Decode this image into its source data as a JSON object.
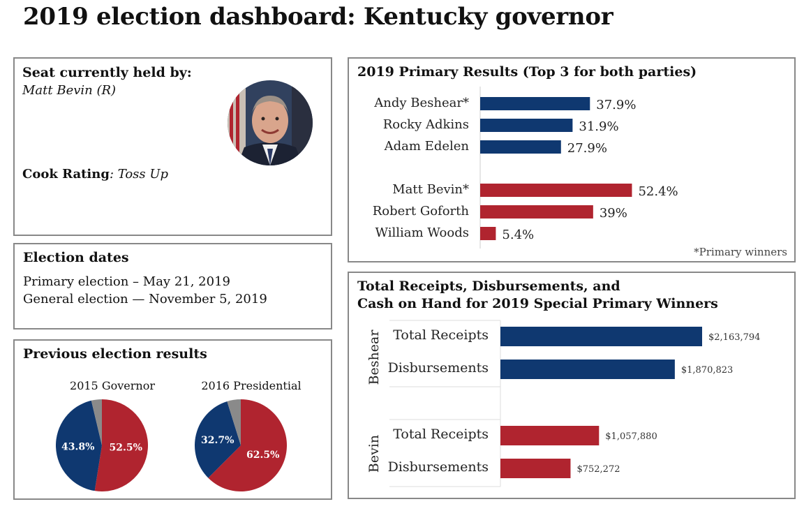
{
  "title": "2019 election dashboard: Kentucky governor",
  "seat": {
    "heading": "Seat currently held by:",
    "holder": "Matt Bevin (R)",
    "rating_label": "Cook Rating",
    "rating_value": ": Toss Up"
  },
  "dates": {
    "heading": "Election dates",
    "primary": "Primary election – May 21, 2019",
    "general": "General election — November 5, 2019"
  },
  "colors": {
    "dem": "#0f3870",
    "rep": "#b0242f",
    "other": "#8a8a8a"
  },
  "chart_data": [
    {
      "type": "pie",
      "title": "2015 Governor",
      "slices": [
        {
          "label": "52.5%",
          "value": 52.5,
          "party": "rep"
        },
        {
          "label": "43.8%",
          "value": 43.8,
          "party": "dem"
        },
        {
          "label": "",
          "value": 3.7,
          "party": "other"
        }
      ]
    },
    {
      "type": "pie",
      "title": "2016 Presidential",
      "slices": [
        {
          "label": "62.5%",
          "value": 62.5,
          "party": "rep"
        },
        {
          "label": "32.7%",
          "value": 32.7,
          "party": "dem"
        },
        {
          "label": "",
          "value": 4.8,
          "party": "other"
        }
      ]
    },
    {
      "type": "bar",
      "title": "2019 Primary Results (Top 3 for both parties)",
      "categories": [
        "Andy Beshear*",
        "Rocky Adkins",
        "Adam Edelen",
        "Matt Bevin*",
        "Robert Goforth",
        "William Woods"
      ],
      "values": [
        37.9,
        31.9,
        27.9,
        52.4,
        39,
        5.4
      ],
      "labels": [
        "37.9%",
        "31.9%",
        "27.9%",
        "52.4%",
        "39%",
        "5.4%"
      ],
      "party": [
        "dem",
        "dem",
        "dem",
        "rep",
        "rep",
        "rep"
      ],
      "note": "*Primary winners"
    },
    {
      "type": "bar",
      "title": "Total Receipts, Disbursements, and Cash on Hand for 2019 Special Primary Winners",
      "title_lines": [
        "Total Receipts, Disbursements, and",
        "Cash on Hand for 2019 Special Primary Winners"
      ],
      "groups": [
        {
          "name": "Beshear",
          "party": "dem",
          "categories": [
            "Total Receipts",
            "Disbursements"
          ],
          "values": [
            2163794,
            1870823
          ],
          "labels": [
            "$2,163,794",
            "$1,870,823"
          ]
        },
        {
          "name": "Bevin",
          "party": "rep",
          "categories": [
            "Total Receipts",
            "Disbursements"
          ],
          "values": [
            1057880,
            752272
          ],
          "labels": [
            "$1,057,880",
            "$752,272"
          ]
        }
      ]
    }
  ],
  "previous": {
    "heading": "Previous election results"
  }
}
